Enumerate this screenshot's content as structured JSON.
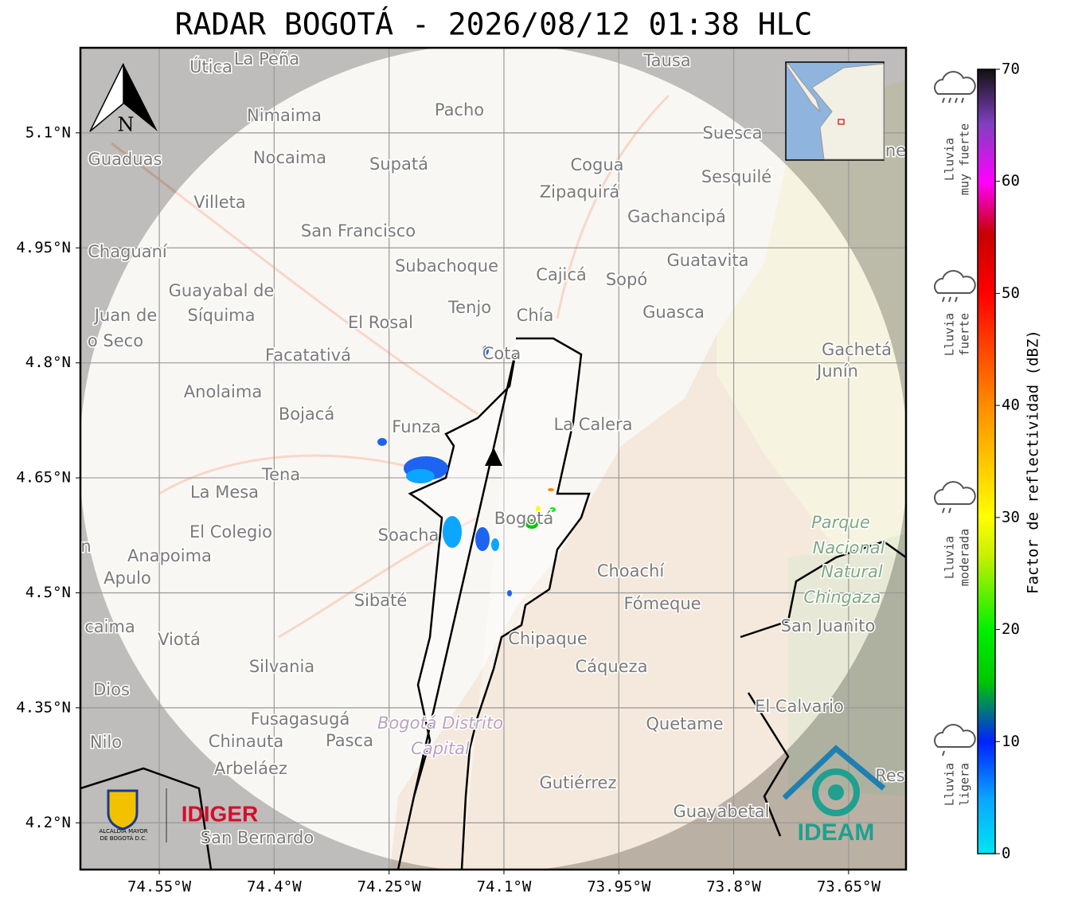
{
  "title": "RADAR BOGOTÁ - 2026/08/12 01:38 HLC",
  "map": {
    "xlim": [
      -74.653,
      -73.575
    ],
    "ylim": [
      4.139,
      5.211
    ],
    "grid": true,
    "xticks": [
      {
        "value": -74.55,
        "label": "74.55°W"
      },
      {
        "value": -74.4,
        "label": "74.4°W"
      },
      {
        "value": -74.25,
        "label": "74.25°W"
      },
      {
        "value": -74.1,
        "label": "74.1°W"
      },
      {
        "value": -73.95,
        "label": "73.95°W"
      },
      {
        "value": -73.8,
        "label": "73.8°W"
      },
      {
        "value": -73.65,
        "label": "73.65°W"
      }
    ],
    "yticks": [
      {
        "value": 5.1,
        "label": "5.1°N"
      },
      {
        "value": 4.95,
        "label": "4.95°N"
      },
      {
        "value": 4.8,
        "label": "4.8°N"
      },
      {
        "value": 4.65,
        "label": "4.65°N"
      },
      {
        "value": 4.5,
        "label": "4.5°N"
      },
      {
        "value": 4.35,
        "label": "4.35°N"
      },
      {
        "value": 4.2,
        "label": "4.2°N"
      }
    ],
    "north": "N",
    "places": [
      "Útica",
      "La Peña",
      "Tausa",
      "Pacho",
      "Nimaima",
      "Guaduas",
      "Nocaima",
      "Supatá",
      "Cogua",
      "Suesca",
      "Sesquilé",
      "Zipaquirá",
      "Villeta",
      "Gachancipá",
      "San Francisco",
      "Chaguaní",
      "Guatavita",
      "Subachoque",
      "Cajicá",
      "Sopó",
      "Guayabal de",
      "Síquima",
      "Juan de",
      "o Seco",
      "Tenjo",
      "Chía",
      "Guasca",
      "El Rosal",
      "Cota",
      "Facatativá",
      "Gachetá",
      "Junín",
      "Anolaima",
      "Bojacá",
      "Funza",
      "La Calera",
      "Tena",
      "La Mesa",
      "Bogotá",
      "El Colegio",
      "Soacha",
      "Anapoima",
      "Apulo",
      "Choachí",
      "Fómeque",
      "Sibaté",
      "San Juanito",
      "caima",
      "Viotá",
      "Chipaque",
      "Silvania",
      "Cáqueza",
      "Dios",
      "El Calvario",
      "Fusagasugá",
      "Quetame",
      "Nilo",
      "Chinauta",
      "Pasca",
      "Arbeláez",
      "Gutiérrez",
      "Guayabetal",
      "San Bernardo",
      "Res",
      "ne",
      "n",
      "Parque",
      "Nacional",
      "Natural",
      "Chingaza",
      "Bogotá Distrito",
      "Capital"
    ]
  },
  "colorbar": {
    "label": "Factor de reflectividad (dBZ)",
    "lim": [
      0,
      70
    ],
    "ticks": [
      0,
      10,
      20,
      30,
      40,
      50,
      60,
      70
    ],
    "categories": [
      [
        "Lluvia",
        "muy fuerte"
      ],
      [
        "Lluvia",
        "fuerte"
      ],
      [
        "Lluvia",
        "moderada"
      ],
      [
        "Lluvia",
        "ligera"
      ]
    ]
  },
  "logos": {
    "alcaldia": [
      "ALCALDÍA MAYOR",
      "DE BOGOTÁ D.C."
    ],
    "idiger": "IDIGER",
    "ideam": "IDEAM"
  }
}
